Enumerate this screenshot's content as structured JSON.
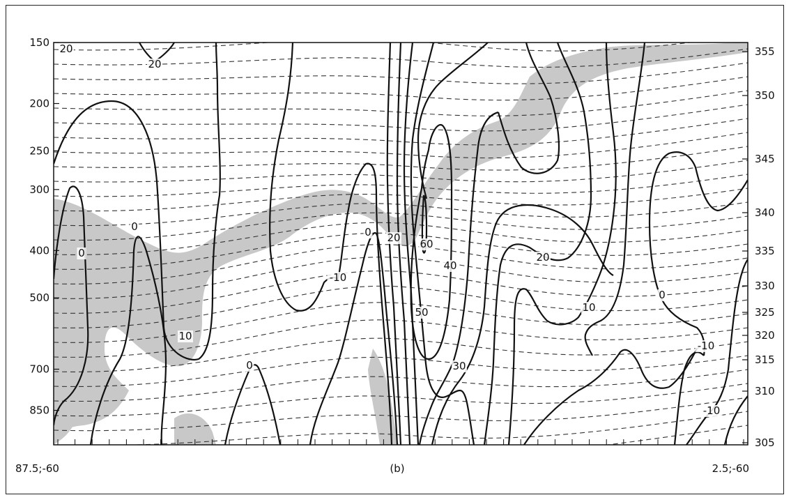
{
  "chart_data": {
    "type": "contour",
    "panel_label": "(b)",
    "x_start_label": "87.5;-60",
    "x_end_label": "2.5;-60",
    "left_axis": {
      "scale": "log",
      "range": [
        150,
        1000
      ],
      "ticks": [
        "150",
        "200",
        "250",
        "300",
        "400",
        "500",
        "700",
        "850"
      ]
    },
    "right_axis": {
      "ticks": [
        "355",
        "350",
        "345",
        "340",
        "335",
        "330",
        "325",
        "320",
        "315",
        "310",
        "305"
      ]
    },
    "solid_contour_labels": [
      "20",
      "20",
      "0",
      "0",
      "10",
      "0",
      "-10",
      "0",
      "20",
      "60",
      "40",
      "50",
      "30",
      "20",
      "10",
      "0",
      "-10",
      "-10"
    ],
    "dashed_contours": "theta isentropes",
    "shading": "light gray band",
    "colors": {
      "solid": "#111111",
      "dashed": "#333333",
      "shade": "#c8c8c8"
    }
  }
}
